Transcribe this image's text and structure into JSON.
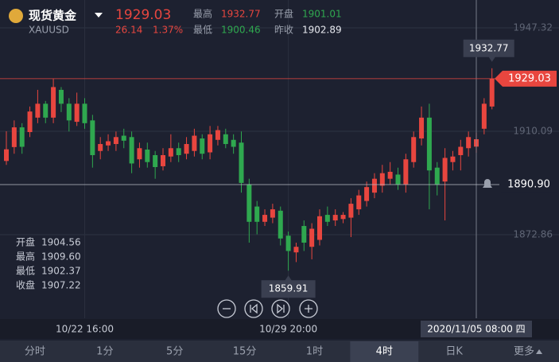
{
  "chart_data": {
    "type": "candlestick",
    "title": "现货黄金",
    "subtitle": "XAUUSD",
    "quote": {
      "price": "1929.03",
      "change": "26.14",
      "change_pct": "1.37%",
      "stats": [
        {
          "name": "最高",
          "value": "1932.77"
        },
        {
          "name": "开盘",
          "value": "1901.01"
        },
        {
          "name": "最低",
          "value": "1900.46"
        },
        {
          "name": "昨收",
          "value": "1902.89"
        }
      ]
    },
    "categories": [
      null,
      null,
      null,
      null,
      null,
      null,
      null,
      null,
      null,
      null,
      "10/22 16:00",
      null,
      null,
      null,
      null,
      null,
      null,
      null,
      null,
      null,
      null,
      null,
      null,
      null,
      null,
      null,
      null,
      null,
      null,
      null,
      null,
      null,
      null,
      null,
      null,
      null,
      "10/29 20:00",
      null,
      null,
      null,
      null,
      null,
      null,
      null,
      null,
      null,
      null,
      null,
      null,
      null,
      null,
      null,
      null,
      null,
      null,
      null,
      null,
      null,
      null,
      null,
      "2020/11/05 08:00 四",
      null,
      null
    ],
    "series": [
      {
        "open": [
          1899.4,
          1904.4,
          1911.5,
          1909.8,
          1915,
          1920,
          1915,
          1925,
          1920,
          1913.5,
          1920,
          1914,
          1903,
          1905,
          1905.5,
          1908.5,
          1908,
          1900,
          1903.5,
          1901.5,
          1897.5,
          1901,
          1904,
          1902,
          1903,
          1907.5,
          1902.5,
          1907,
          1909,
          1907,
          1906,
          1891,
          1883,
          1877.5,
          1879,
          1881.5,
          1872.5,
          1866.5,
          1876,
          1868.5,
          1871,
          1880,
          1878,
          1878.5,
          1879,
          1882,
          1885,
          1888,
          1890.5,
          1893,
          1894.5,
          1891,
          1899,
          1907.5,
          1915,
          1897,
          1892,
          1899,
          1901.5,
          1904,
          1904.56,
          1911,
          1919
        ],
        "high": [
          1910.1,
          1914,
          1913,
          1919,
          1925,
          1921,
          1929,
          1926,
          1922,
          1924,
          1922,
          1916,
          1908,
          1909,
          1910,
          1911,
          1910,
          1906,
          1906,
          1903,
          1904,
          1909,
          1906,
          1908,
          1911,
          1909,
          1912,
          1912,
          1911,
          1909,
          1910,
          1893,
          1885,
          1882,
          1884,
          1883,
          1874,
          1870,
          1878,
          1877,
          1882,
          1883,
          1882,
          1881,
          1886,
          1889,
          1892,
          1895,
          1898,
          1899,
          1897,
          1902,
          1910,
          1919,
          1920,
          1899,
          1904,
          1903,
          1907,
          1910,
          1909.6,
          1922,
          1932.77
        ],
        "low": [
          1898,
          1902,
          1902,
          1908,
          1913,
          1913,
          1913,
          1917,
          1910,
          1912,
          1911,
          1897,
          1900,
          1903,
          1903,
          1904,
          1895,
          1897,
          1897,
          1893,
          1896,
          1899,
          1899,
          1900,
          1901,
          1900,
          1900,
          1905,
          1904,
          1902,
          1888,
          1870,
          1873,
          1876,
          1877,
          1869,
          1859.91,
          1863,
          1867,
          1864,
          1869,
          1876,
          1876,
          1877,
          1872,
          1880,
          1883,
          1886,
          1888,
          1891,
          1889,
          1888,
          1897,
          1905,
          1882,
          1887,
          1878,
          1896,
          1896,
          1901,
          1902.37,
          1909,
          1918
        ],
        "close": [
          1903.6,
          1911.5,
          1904.5,
          1917.2,
          1920,
          1915,
          1926,
          1920,
          1914,
          1920,
          1913,
          1901.5,
          1905.5,
          1906.5,
          1908,
          1906.7,
          1898.5,
          1904,
          1899,
          1897.2,
          1901.5,
          1904,
          1901.5,
          1905.5,
          1908.5,
          1902,
          1909,
          1910.5,
          1905.5,
          1904.5,
          1891.5,
          1877.5,
          1877.5,
          1880,
          1882,
          1871.5,
          1867,
          1868.5,
          1870,
          1875,
          1879.5,
          1877.5,
          1880,
          1880,
          1884,
          1887,
          1890,
          1893,
          1895,
          1895.5,
          1891,
          1900,
          1908,
          1915,
          1896,
          1891,
          1900.5,
          1901,
          1904.5,
          1908,
          1907.22,
          1920,
          1929.03
        ],
        "up_color": "#e8463f",
        "down_color": "#2fa84f"
      }
    ],
    "ylim": [
      1842.79,
      1957.34
    ],
    "yticks": [
      1947.32,
      1910.09,
      1872.86
    ],
    "grid": true,
    "alert_line": {
      "value": 1890.9,
      "label": "1890.90"
    },
    "crosshair_index": 60,
    "crosshair_info": [
      {
        "name": "开盘",
        "value": "1904.56"
      },
      {
        "name": "最高",
        "value": "1909.60"
      },
      {
        "name": "最低",
        "value": "1902.37"
      },
      {
        "name": "收盘",
        "value": "1907.22"
      }
    ],
    "max_index": 62,
    "min_index": 36,
    "tabs": [
      "分时",
      "1分",
      "5分",
      "15分",
      "1时",
      "4时",
      "日K",
      "更多"
    ],
    "selected_tab": 5
  }
}
